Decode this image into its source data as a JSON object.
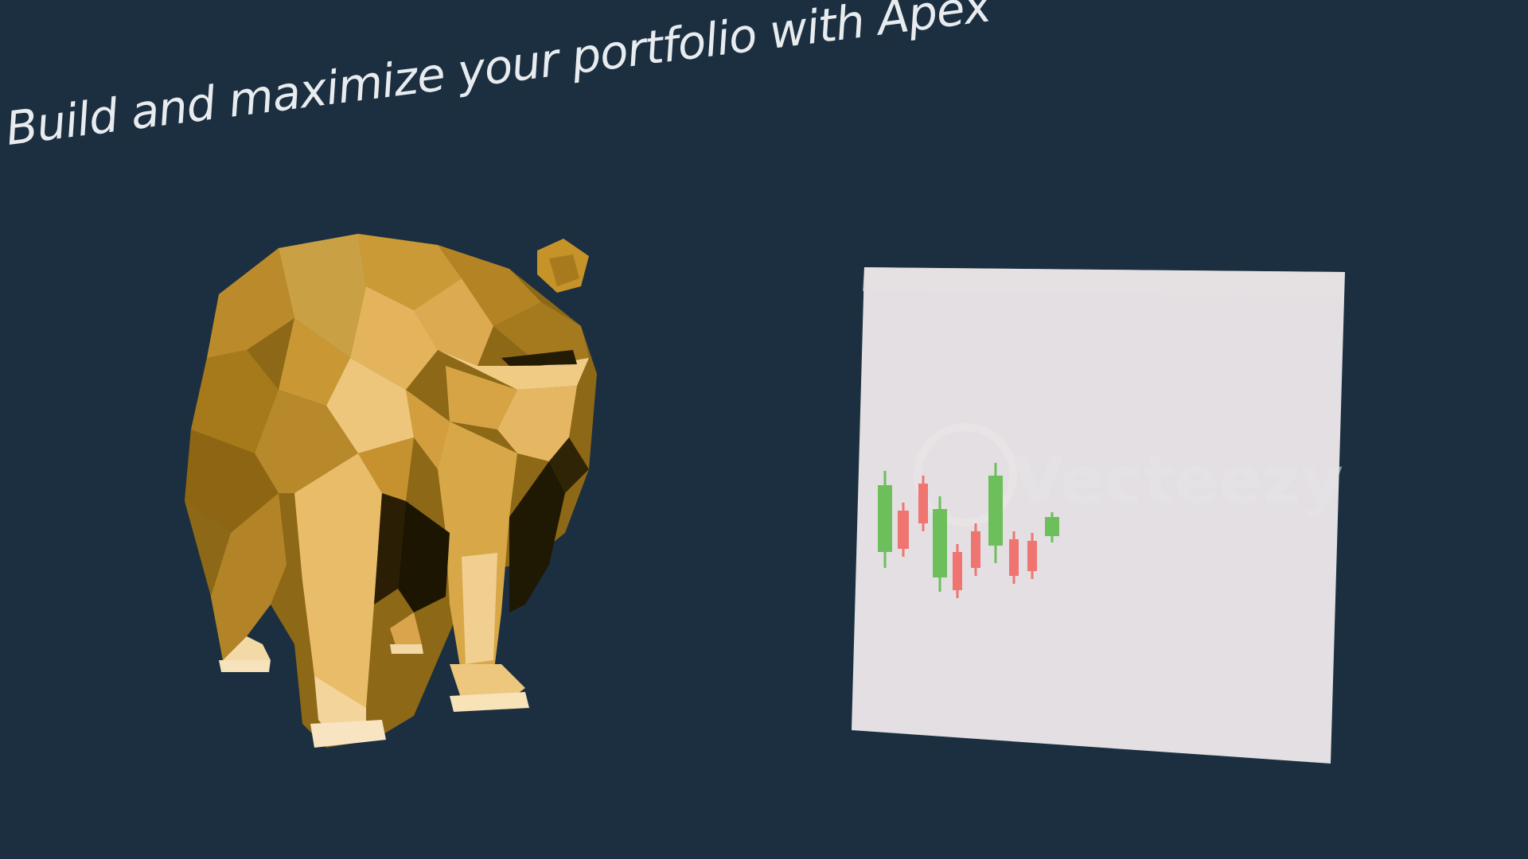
{
  "headline": {
    "text": "Build and maximize your portfolio with Apex"
  },
  "board": {
    "watermark": "Vecteezy",
    "bullish_color": "#6cbf5b",
    "bearish_color": "#f07470",
    "background_color": "#e3dfe2"
  },
  "bear": {
    "icon": "lowpoly-bear-icon",
    "color": "#c49a3b"
  },
  "background": {
    "color": "#1b2f40"
  }
}
